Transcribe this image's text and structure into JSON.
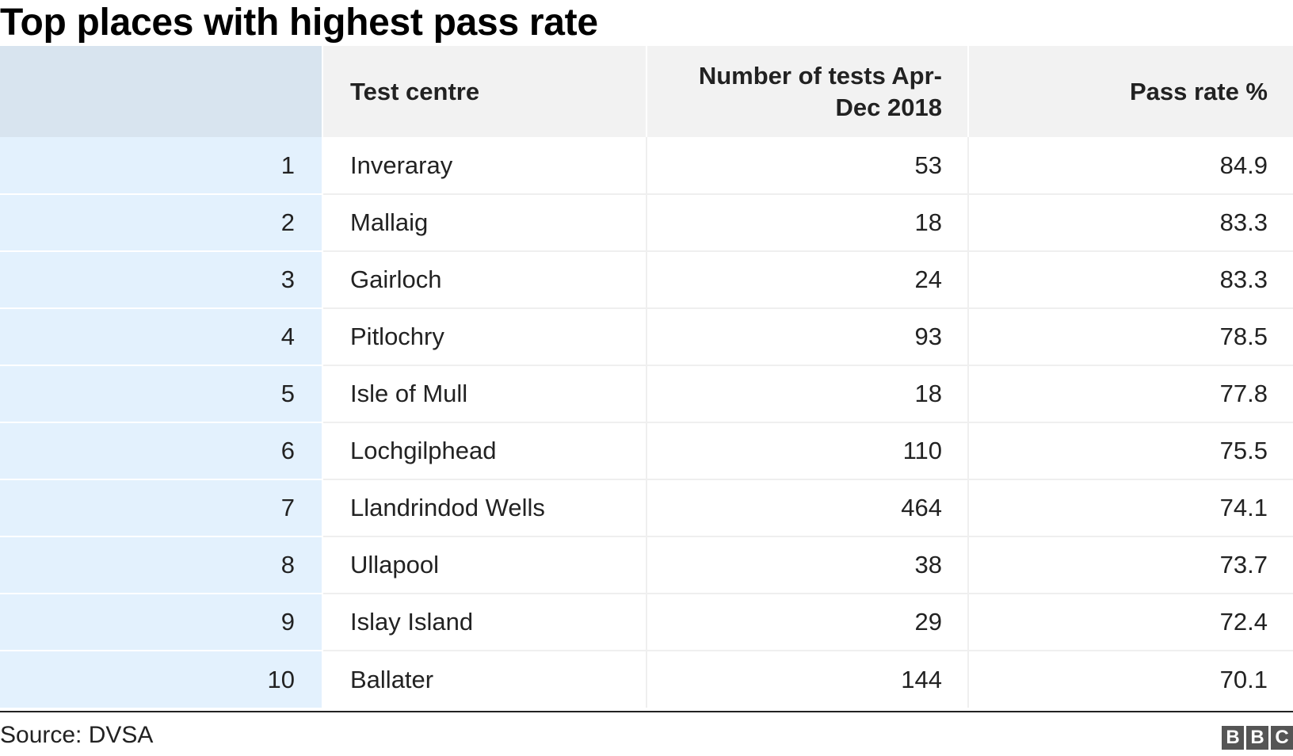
{
  "title": "Top places with highest pass rate",
  "chart_data": {
    "type": "table",
    "title": "Top places with highest pass rate",
    "columns": [
      "",
      "Test centre",
      "Number of tests Apr-Dec 2018",
      "Pass rate %"
    ],
    "rows": [
      {
        "rank": "1",
        "centre": "Inveraray",
        "tests": "53",
        "pass_rate": "84.9"
      },
      {
        "rank": "2",
        "centre": "Mallaig",
        "tests": "18",
        "pass_rate": "83.3"
      },
      {
        "rank": "3",
        "centre": "Gairloch",
        "tests": "24",
        "pass_rate": "83.3"
      },
      {
        "rank": "4",
        "centre": "Pitlochry",
        "tests": "93",
        "pass_rate": "78.5"
      },
      {
        "rank": "5",
        "centre": "Isle of Mull",
        "tests": "18",
        "pass_rate": "77.8"
      },
      {
        "rank": "6",
        "centre": "Lochgilphead",
        "tests": "110",
        "pass_rate": "75.5"
      },
      {
        "rank": "7",
        "centre": "Llandrindod Wells",
        "tests": "464",
        "pass_rate": "74.1"
      },
      {
        "rank": "8",
        "centre": "Ullapool",
        "tests": "38",
        "pass_rate": "73.7"
      },
      {
        "rank": "9",
        "centre": "Islay Island",
        "tests": "29",
        "pass_rate": "72.4"
      },
      {
        "rank": "10",
        "centre": "Ballater",
        "tests": "144",
        "pass_rate": "70.1"
      }
    ]
  },
  "footer": {
    "source": "Source: DVSA",
    "logo_letters": [
      "B",
      "B",
      "C"
    ]
  },
  "colors": {
    "header_bg": "#f2f2f2",
    "rank_header_bg": "#d8e4ef",
    "rank_cell_bg": "#e3f1fd",
    "logo_bg": "#555555"
  }
}
